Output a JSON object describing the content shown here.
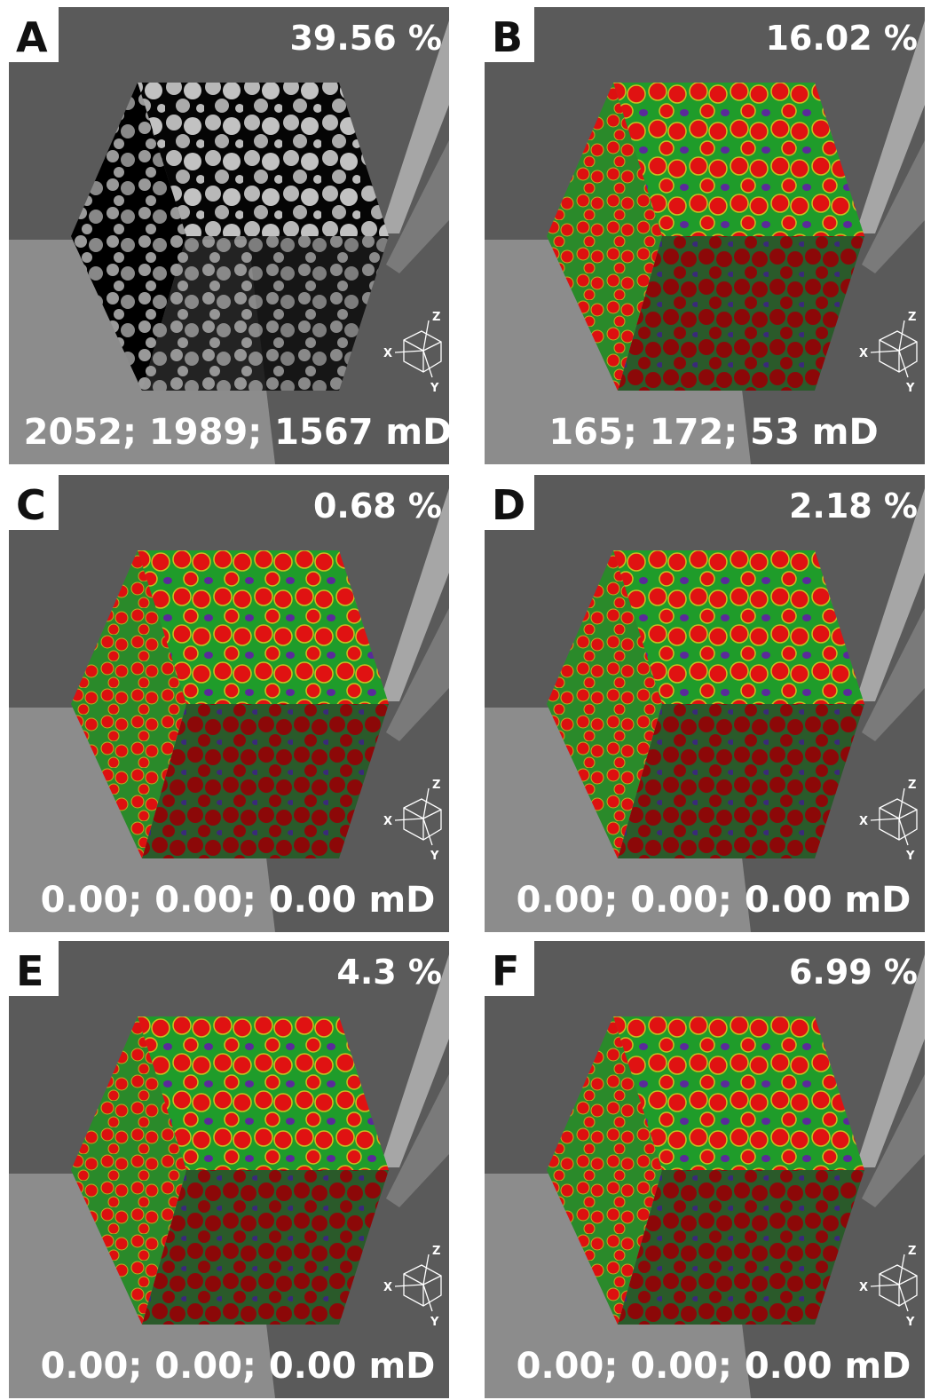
{
  "panels": [
    {
      "label": "A",
      "porosity": "39.56 %",
      "permeability": "2052;  1989;  1567 mD"
    },
    {
      "label": "B",
      "porosity": "16.02 %",
      "permeability": "165;  172;  53 mD"
    },
    {
      "label": "C",
      "porosity": "0.68 %",
      "permeability": "0.00;  0.00;  0.00 mD"
    },
    {
      "label": "D",
      "porosity": "2.18 %",
      "permeability": "0.00;  0.00;  0.00 mD"
    },
    {
      "label": "E",
      "porosity": "4.3 %",
      "permeability": "0.00;  0.00;  0.00 mD"
    },
    {
      "label": "F",
      "porosity": "6.99 %",
      "permeability": "0.00;  0.00;  0.00 mD"
    }
  ],
  "axis_labels": {
    "x": "X",
    "y": "Y",
    "z": "Z"
  }
}
